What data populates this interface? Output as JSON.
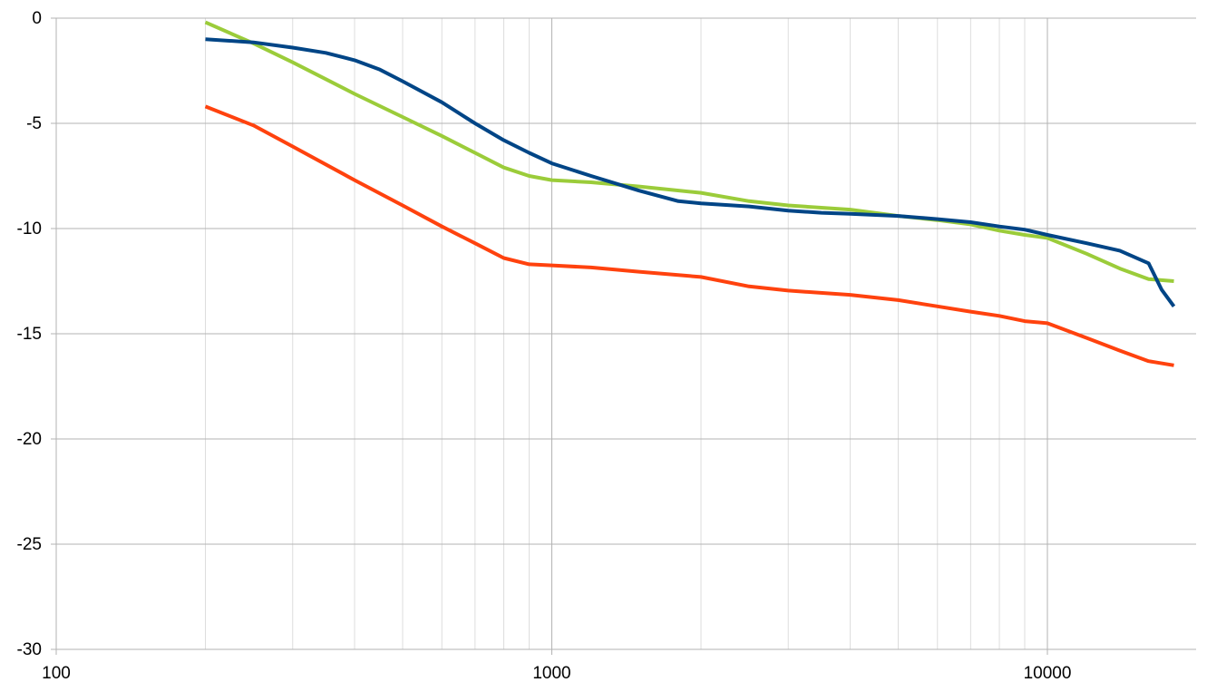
{
  "chart_data": {
    "type": "line",
    "title": "",
    "xlabel": "",
    "ylabel": "",
    "x_scale": "log",
    "xlim": [
      100,
      18000
    ],
    "ylim": [
      -30,
      0
    ],
    "grid": true,
    "legend": "none",
    "x_ticks": [
      {
        "value": 100,
        "label": "100"
      },
      {
        "value": 1000,
        "label": "1000"
      },
      {
        "value": 10000,
        "label": "10000"
      }
    ],
    "y_ticks": [
      {
        "value": 0,
        "label": "0"
      },
      {
        "value": -5,
        "label": "-5"
      },
      {
        "value": -10,
        "label": "-10"
      },
      {
        "value": -15,
        "label": "-15"
      },
      {
        "value": -20,
        "label": "-20"
      },
      {
        "value": -25,
        "label": "-25"
      },
      {
        "value": -30,
        "label": "-30"
      }
    ],
    "series": [
      {
        "color": "#9bcc3a",
        "points": [
          [
            200,
            -0.2
          ],
          [
            250,
            -1.2
          ],
          [
            300,
            -2.1
          ],
          [
            350,
            -2.9
          ],
          [
            400,
            -3.6
          ],
          [
            500,
            -4.7
          ],
          [
            600,
            -5.6
          ],
          [
            700,
            -6.4
          ],
          [
            800,
            -7.1
          ],
          [
            900,
            -7.5
          ],
          [
            1000,
            -7.7
          ],
          [
            1200,
            -7.8
          ],
          [
            1500,
            -8.0
          ],
          [
            2000,
            -8.3
          ],
          [
            2500,
            -8.7
          ],
          [
            3000,
            -8.9
          ],
          [
            4000,
            -9.1
          ],
          [
            5000,
            -9.4
          ],
          [
            6000,
            -9.6
          ],
          [
            7000,
            -9.8
          ],
          [
            8000,
            -10.1
          ],
          [
            9000,
            -10.3
          ],
          [
            10000,
            -10.45
          ],
          [
            12000,
            -11.2
          ],
          [
            14000,
            -11.9
          ],
          [
            16000,
            -12.4
          ],
          [
            18000,
            -12.5
          ]
        ]
      },
      {
        "color": "#004586",
        "points": [
          [
            200,
            -1.0
          ],
          [
            250,
            -1.15
          ],
          [
            300,
            -1.4
          ],
          [
            350,
            -1.65
          ],
          [
            400,
            -2.0
          ],
          [
            450,
            -2.45
          ],
          [
            500,
            -3.0
          ],
          [
            600,
            -4.0
          ],
          [
            700,
            -5.0
          ],
          [
            800,
            -5.8
          ],
          [
            900,
            -6.4
          ],
          [
            1000,
            -6.9
          ],
          [
            1200,
            -7.5
          ],
          [
            1500,
            -8.2
          ],
          [
            1800,
            -8.7
          ],
          [
            2000,
            -8.8
          ],
          [
            2500,
            -8.95
          ],
          [
            3000,
            -9.15
          ],
          [
            3500,
            -9.25
          ],
          [
            4000,
            -9.3
          ],
          [
            5000,
            -9.4
          ],
          [
            6000,
            -9.55
          ],
          [
            7000,
            -9.7
          ],
          [
            8000,
            -9.9
          ],
          [
            9000,
            -10.05
          ],
          [
            10000,
            -10.3
          ],
          [
            12000,
            -10.7
          ],
          [
            14000,
            -11.05
          ],
          [
            16000,
            -11.65
          ],
          [
            17000,
            -12.9
          ],
          [
            18000,
            -13.7
          ]
        ]
      },
      {
        "color": "#ff420e",
        "points": [
          [
            200,
            -4.2
          ],
          [
            250,
            -5.1
          ],
          [
            300,
            -6.1
          ],
          [
            400,
            -7.7
          ],
          [
            500,
            -8.9
          ],
          [
            600,
            -9.9
          ],
          [
            700,
            -10.7
          ],
          [
            800,
            -11.4
          ],
          [
            900,
            -11.7
          ],
          [
            1000,
            -11.75
          ],
          [
            1200,
            -11.85
          ],
          [
            1500,
            -12.05
          ],
          [
            2000,
            -12.3
          ],
          [
            2500,
            -12.75
          ],
          [
            3000,
            -12.95
          ],
          [
            4000,
            -13.15
          ],
          [
            5000,
            -13.4
          ],
          [
            6000,
            -13.7
          ],
          [
            7000,
            -13.95
          ],
          [
            8000,
            -14.15
          ],
          [
            9000,
            -14.4
          ],
          [
            10000,
            -14.5
          ],
          [
            12000,
            -15.2
          ],
          [
            14000,
            -15.8
          ],
          [
            16000,
            -16.3
          ],
          [
            18000,
            -16.5
          ]
        ]
      }
    ]
  }
}
